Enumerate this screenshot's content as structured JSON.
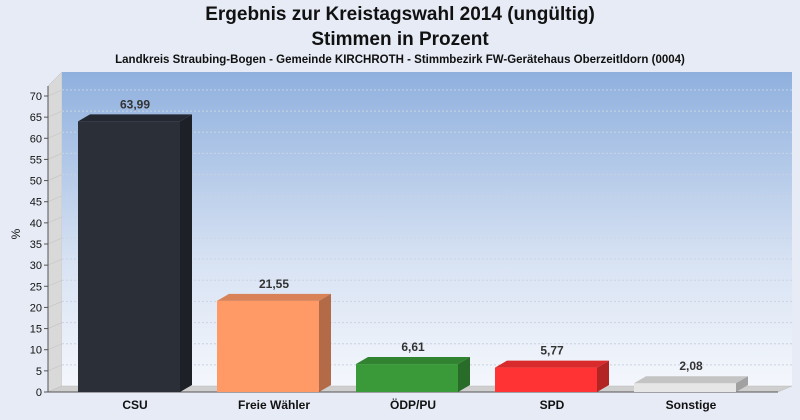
{
  "chart_data": {
    "type": "bar",
    "title": "Ergebnis zur Kreistagswahl 2014 (ungültig)",
    "subtitle": "Stimmen in Prozent",
    "caption": "Landkreis Straubing-Bogen - Gemeinde KIRCHROTH - Stimmbezirk FW-Gerätehaus Oberzeitldorn (0004)",
    "ylabel": "%",
    "xlabel": "",
    "ylim": [
      0,
      70
    ],
    "yticks": [
      0,
      5,
      10,
      15,
      20,
      25,
      30,
      35,
      40,
      45,
      50,
      55,
      60,
      65,
      70
    ],
    "grid": true,
    "categories": [
      "CSU",
      "Freie Wähler",
      "ÖDP/PU",
      "SPD",
      "Sonstige"
    ],
    "values": [
      63.99,
      21.55,
      6.61,
      5.77,
      2.08
    ],
    "value_labels": [
      "63,99",
      "21,55",
      "6,61",
      "5,77",
      "2,08"
    ],
    "colors": [
      "#2a2f38",
      "#ff9966",
      "#3a9a3a",
      "#ff3333",
      "#e6e6e6"
    ]
  }
}
